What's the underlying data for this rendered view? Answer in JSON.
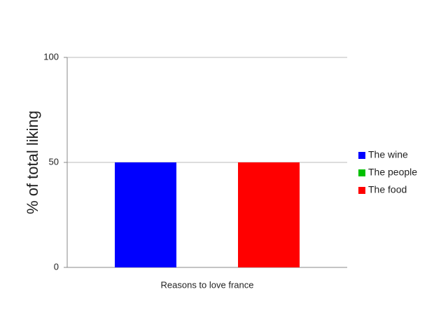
{
  "chart_data": {
    "type": "bar",
    "y_label": "% of total liking",
    "categories": [
      "Reasons to love france"
    ],
    "series": [
      {
        "name": "The wine",
        "color": "#0000ff",
        "values": [
          50
        ]
      },
      {
        "name": "The people",
        "color": "#00c000",
        "values": [
          0
        ]
      },
      {
        "name": "The food",
        "color": "#ff0000",
        "values": [
          50
        ]
      }
    ],
    "ylim": [
      0,
      100
    ],
    "yticks": [
      0,
      50,
      100
    ],
    "grid": true,
    "legend": "right"
  }
}
